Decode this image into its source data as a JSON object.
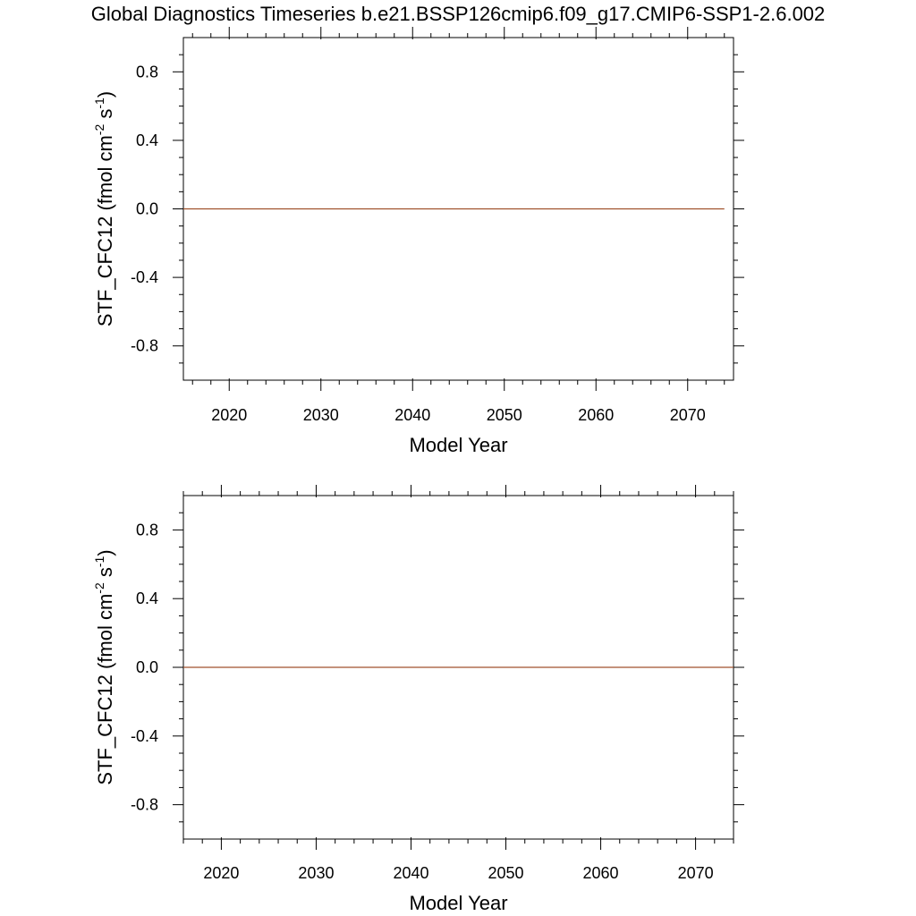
{
  "title": "Global Diagnostics Timeseries b.e21.BSSP126cmip6.f09_g17.CMIP6-SSP1-2.6.002",
  "colors": {
    "series": "#a0522d",
    "axis": "#000000",
    "background": "#ffffff"
  },
  "chart_data": [
    {
      "type": "line",
      "xlabel": "Model Year",
      "ylabel": "STF_CFC12 (fmol cm-2 s-1)",
      "ylabel_parts": {
        "base": "STF_CFC12 (fmol cm",
        "exp1": "-2",
        "mid": " s",
        "exp2": "-1",
        "end": ")"
      },
      "xlim": [
        2015,
        2075
      ],
      "ylim": [
        -1.0,
        1.0
      ],
      "xticks": [
        2020,
        2030,
        2040,
        2050,
        2060,
        2070
      ],
      "xtick_labels": [
        "2020",
        "2030",
        "2040",
        "2050",
        "2060",
        "2070"
      ],
      "yticks": [
        0.8,
        0.4,
        0.0,
        -0.4,
        -0.8
      ],
      "ytick_labels": [
        "0.8",
        "0.4",
        "0.0",
        "-0.4",
        "-0.8"
      ],
      "grid": false,
      "series": [
        {
          "x": [
            2015,
            2074
          ],
          "y": [
            0.0,
            0.0
          ]
        }
      ]
    },
    {
      "type": "line",
      "xlabel": "Model Year",
      "ylabel": "STF_CFC12 (fmol cm-2 s-1)",
      "ylabel_parts": {
        "base": "STF_CFC12 (fmol cm",
        "exp1": "-2",
        "mid": " s",
        "exp2": "-1",
        "end": ")"
      },
      "xlim": [
        2016,
        2074
      ],
      "ylim": [
        -1.0,
        1.0
      ],
      "xticks": [
        2020,
        2030,
        2040,
        2050,
        2060,
        2070
      ],
      "xtick_labels": [
        "2020",
        "2030",
        "2040",
        "2050",
        "2060",
        "2070"
      ],
      "yticks": [
        0.8,
        0.4,
        0.0,
        -0.4,
        -0.8
      ],
      "ytick_labels": [
        "0.8",
        "0.4",
        "0.0",
        "-0.4",
        "-0.8"
      ],
      "grid": false,
      "series": [
        {
          "x": [
            2016,
            2074
          ],
          "y": [
            0.0,
            0.0
          ]
        }
      ]
    }
  ]
}
